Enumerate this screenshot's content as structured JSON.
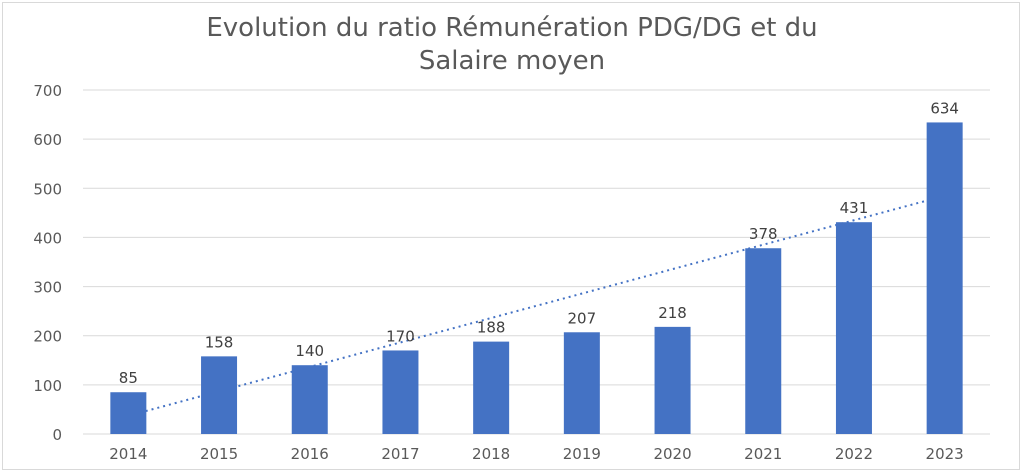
{
  "chart_data": {
    "type": "bar",
    "title_lines": [
      "Evolution du ratio Rémunération PDG/DG et du",
      "Salaire moyen"
    ],
    "categories": [
      "2014",
      "2015",
      "2016",
      "2017",
      "2018",
      "2019",
      "2020",
      "2021",
      "2022",
      "2023"
    ],
    "values": [
      85,
      158,
      140,
      170,
      188,
      207,
      218,
      378,
      431,
      634
    ],
    "data_labels": [
      "85",
      "158",
      "140",
      "170",
      "188",
      "207",
      "218",
      "378",
      "431",
      "634"
    ],
    "y_ticks": [
      "0",
      "100",
      "200",
      "300",
      "400",
      "500",
      "600",
      "700"
    ],
    "ylim": [
      0,
      700
    ],
    "grid": true,
    "legend": "none",
    "trendline": {
      "type": "linear",
      "style": "dotted"
    },
    "colors": {
      "bar": "#4472C4",
      "trendline": "#4472C4",
      "grid": "#d9d9d9",
      "text": "#595959"
    }
  }
}
